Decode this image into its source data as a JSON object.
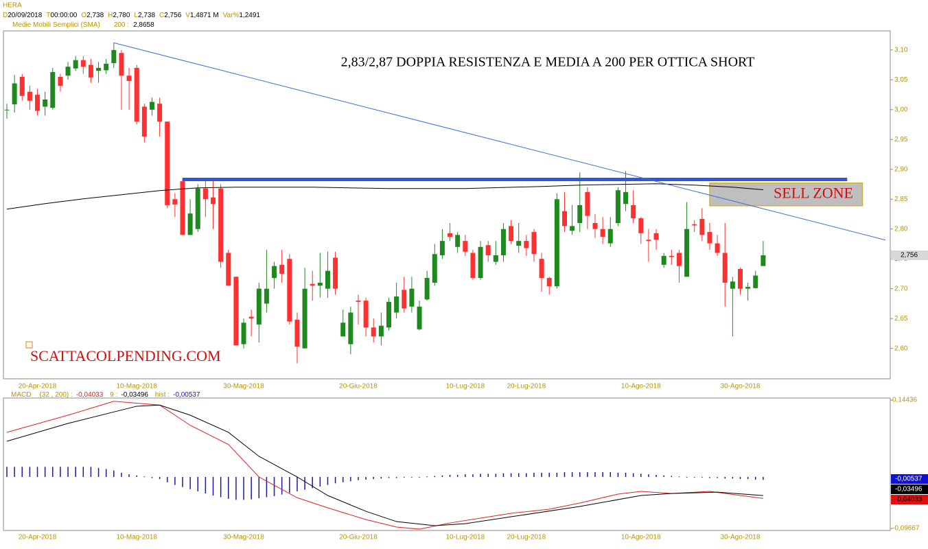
{
  "chart_data": [
    {
      "type": "candlestick",
      "header": {
        "symbol": "HERA",
        "fields": [
          {
            "key": "D",
            "value": "20/09/2018"
          },
          {
            "key": "T",
            "value": "00:00:00"
          },
          {
            "key": "O",
            "value": "2,738"
          },
          {
            "key": "H",
            "value": "2,780"
          },
          {
            "key": "L",
            "value": "2,738"
          },
          {
            "key": "C",
            "value": "2,756"
          },
          {
            "key": "V",
            "value": "1,4871 M"
          },
          {
            "key": "Var%",
            "value": "1,2491"
          }
        ]
      },
      "title": "2,83/2,87 DOPPIA RESISTENZA E MEDIA A 200 PER OTTICA SHORT",
      "annotations": [
        "SELL ZONE",
        "SCATTACOLPENDING.COM"
      ],
      "last_label": "2,756",
      "categories": [
        null,
        null,
        null,
        null,
        "20-Apr-2018",
        null,
        null,
        null,
        null,
        null,
        null,
        null,
        null,
        null,
        null,
        null,
        null,
        "10-Mag-2018",
        null,
        null,
        null,
        null,
        null,
        null,
        null,
        null,
        null,
        null,
        null,
        null,
        null,
        "30-Mag-2018",
        null,
        null,
        null,
        null,
        null,
        null,
        null,
        null,
        null,
        null,
        null,
        null,
        null,
        null,
        "20-Giu-2018",
        null,
        null,
        null,
        null,
        null,
        null,
        null,
        null,
        null,
        null,
        null,
        null,
        null,
        "10-Lug-2018",
        null,
        null,
        null,
        null,
        null,
        null,
        null,
        "20-Lug-2018",
        null,
        null,
        null,
        null,
        null,
        null,
        null,
        null,
        null,
        null,
        null,
        null,
        null,
        null,
        "10-Ago-2018",
        null,
        null,
        null,
        null,
        null,
        null,
        null,
        null,
        null,
        null,
        null,
        null,
        "30-Ago-2018",
        null,
        null,
        null
      ],
      "open": [
        3.0,
        3.009,
        3.055,
        3.03,
        3.025,
        3.005,
        3.003,
        3.055,
        3.057,
        3.069,
        3.083,
        3.075,
        3.065,
        3.066,
        3.078,
        3.095,
        3.057,
        3.07,
        3.005,
        3.0,
        3.01,
        2.98,
        2.85,
        2.88,
        2.79,
        2.8,
        2.868,
        2.853,
        2.868,
        2.76,
        2.72,
        2.607,
        2.653,
        2.64,
        2.675,
        2.718,
        2.74,
        2.75,
        2.648,
        2.6,
        2.708,
        2.705,
        2.7,
        2.752,
        2.62,
        2.607,
        2.68,
        2.68,
        2.635,
        2.62,
        2.635,
        2.66,
        2.698,
        2.67,
        2.632,
        2.682,
        2.71,
        2.756,
        2.793,
        2.77,
        2.78,
        2.76,
        2.718,
        2.773,
        2.745,
        2.756,
        2.805,
        2.772,
        2.78,
        2.795,
        2.75,
        2.718,
        2.704,
        2.83,
        2.797,
        2.81,
        2.862,
        2.81,
        2.8,
        2.776,
        2.81,
        2.842,
        2.84,
        2.818,
        2.782,
        2.793,
        2.74,
        2.755,
        2.76,
        2.72,
        2.808,
        2.817,
        2.795,
        2.776,
        2.76,
        2.7,
        2.733,
        2.7,
        2.701,
        2.738
      ],
      "high": [
        3.01,
        3.058,
        3.06,
        3.04,
        3.035,
        3.03,
        3.07,
        3.06,
        3.08,
        3.09,
        3.09,
        3.085,
        3.08,
        3.085,
        3.112,
        3.1,
        3.07,
        3.075,
        3.01,
        3.02,
        3.02,
        2.98,
        2.86,
        2.885,
        2.85,
        2.875,
        2.88,
        2.885,
        2.875,
        2.765,
        2.72,
        2.65,
        2.665,
        2.71,
        2.765,
        2.745,
        2.765,
        2.758,
        2.66,
        2.735,
        2.73,
        2.76,
        2.762,
        2.762,
        2.665,
        2.67,
        2.69,
        2.685,
        2.65,
        2.66,
        2.685,
        2.71,
        2.72,
        2.72,
        2.68,
        2.73,
        2.775,
        2.8,
        2.81,
        2.795,
        2.79,
        2.765,
        2.78,
        2.78,
        2.78,
        2.81,
        2.815,
        2.81,
        2.79,
        2.8,
        2.76,
        2.72,
        2.86,
        2.862,
        2.84,
        2.895,
        2.87,
        2.825,
        2.82,
        2.82,
        2.87,
        2.897,
        2.865,
        2.82,
        2.8,
        2.8,
        2.76,
        2.765,
        2.765,
        2.845,
        2.815,
        2.835,
        2.81,
        2.79,
        2.81,
        2.72,
        2.735,
        2.71,
        2.73,
        2.78
      ],
      "low": [
        2.985,
        2.995,
        3.015,
        3.0,
        2.99,
        2.99,
        3.0,
        3.03,
        3.05,
        3.065,
        3.06,
        3.045,
        3.045,
        3.06,
        3.07,
        3.0,
        3.0,
        2.975,
        2.945,
        2.99,
        2.955,
        2.835,
        2.82,
        2.79,
        2.79,
        2.795,
        2.82,
        2.8,
        2.735,
        2.705,
        2.605,
        2.6,
        2.62,
        2.61,
        2.66,
        2.7,
        2.71,
        2.64,
        2.575,
        2.6,
        2.68,
        2.685,
        2.685,
        2.69,
        2.62,
        2.59,
        2.64,
        2.62,
        2.61,
        2.605,
        2.63,
        2.65,
        2.66,
        2.66,
        2.63,
        2.68,
        2.705,
        2.75,
        2.78,
        2.76,
        2.755,
        2.715,
        2.715,
        2.745,
        2.74,
        2.745,
        2.775,
        2.76,
        2.755,
        2.745,
        2.695,
        2.69,
        2.7,
        2.795,
        2.79,
        2.795,
        2.8,
        2.785,
        2.775,
        2.77,
        2.805,
        2.83,
        2.81,
        2.775,
        2.745,
        2.765,
        2.735,
        2.74,
        2.71,
        2.72,
        2.795,
        2.78,
        2.765,
        2.755,
        2.67,
        2.62,
        2.69,
        2.68,
        2.7,
        2.738
      ],
      "close": [
        3.0,
        3.044,
        3.023,
        3.015,
        2.998,
        3.017,
        3.063,
        3.04,
        3.072,
        3.083,
        3.072,
        3.054,
        3.07,
        3.077,
        3.1,
        3.057,
        3.048,
        2.98,
        2.955,
        3.013,
        2.98,
        2.84,
        2.841,
        2.79,
        2.826,
        2.868,
        2.85,
        2.842,
        2.745,
        2.705,
        2.605,
        2.643,
        2.65,
        2.7,
        2.7,
        2.738,
        2.725,
        2.645,
        2.603,
        2.7,
        2.705,
        2.71,
        2.73,
        2.7,
        2.643,
        2.66,
        2.678,
        2.635,
        2.62,
        2.638,
        2.678,
        2.687,
        2.667,
        2.7,
        2.67,
        2.718,
        2.758,
        2.78,
        2.787,
        2.79,
        2.762,
        2.718,
        2.77,
        2.756,
        2.756,
        2.8,
        2.78,
        2.78,
        2.768,
        2.758,
        2.718,
        2.704,
        2.85,
        2.805,
        2.805,
        2.84,
        2.822,
        2.8,
        2.787,
        2.8,
        2.865,
        2.862,
        2.818,
        2.793,
        2.78,
        2.782,
        2.755,
        2.753,
        2.738,
        2.8,
        2.806,
        2.79,
        2.776,
        2.76,
        2.71,
        2.712,
        2.7,
        2.703,
        2.722,
        2.756
      ],
      "up_color": "#1e8a1e",
      "down_color": "#ff3030",
      "sma": {
        "name": "Medie Mobili Semplici (SMA)",
        "period_label": "200 :",
        "last_label": "2,8658",
        "color": "#000000",
        "x": [
          0,
          5,
          10,
          15,
          20,
          25,
          30,
          40,
          50,
          60,
          70,
          75,
          80,
          85,
          90,
          95,
          99
        ],
        "values": [
          2.8333,
          2.8425,
          2.8506,
          2.8575,
          2.8644,
          2.869,
          2.8701,
          2.8701,
          2.8678,
          2.8678,
          2.8713,
          2.8736,
          2.8747,
          2.8759,
          2.8736,
          2.8701,
          2.8658
        ]
      },
      "trendline": {
        "x": [
          14,
          115
        ],
        "values": [
          3.112,
          2.7816
        ],
        "color": "#3a6fd8"
      },
      "resistance": {
        "x": [
          23,
          110
        ],
        "values": [
          2.883,
          2.883
        ],
        "color": "#3355dd"
      },
      "sell_zone": {
        "x": [
          92,
          112
        ],
        "values": [
          2.877,
          2.839
        ]
      },
      "ylim": [
        2.549,
        3.132
      ],
      "yticks": [
        {
          "value": 2.6,
          "label": "2,60"
        },
        {
          "value": 2.65,
          "label": "2,65"
        },
        {
          "value": 2.7,
          "label": "2,70"
        },
        {
          "value": 2.75,
          "label": "2,75"
        },
        {
          "value": 2.8,
          "label": "2,80"
        },
        {
          "value": 2.85,
          "label": "2,85"
        },
        {
          "value": 2.9,
          "label": "2,90"
        },
        {
          "value": 2.95,
          "label": "2,95"
        },
        {
          "value": 3.0,
          "label": "3,00"
        },
        {
          "value": 3.05,
          "label": "3,05"
        },
        {
          "value": 3.1,
          "label": "3,10"
        }
      ]
    },
    {
      "type": "macd",
      "name": "MACD",
      "series": [
        {
          "name": "(32 , 200) :",
          "last_label": "-0,04033",
          "color": "#e02020",
          "x": [
            0,
            8,
            14,
            20,
            24,
            29,
            33,
            38,
            42,
            47,
            51,
            54,
            58,
            62,
            66,
            71,
            75,
            80,
            83,
            87,
            92,
            96,
            99
          ],
          "values": [
            0.0838,
            0.116,
            0.142,
            0.135,
            0.097,
            0.061,
            0.0,
            -0.039,
            -0.058,
            -0.08,
            -0.094,
            -0.098,
            -0.0864,
            -0.0773,
            -0.0683,
            -0.0606,
            -0.049,
            -0.0322,
            -0.0271,
            -0.031,
            -0.0271,
            -0.0348,
            -0.04033
          ]
        },
        {
          "name": "9 :",
          "last_label": "-0,03496",
          "color": "#000000",
          "x": [
            0,
            8,
            17,
            20,
            24,
            29,
            33,
            38,
            42,
            47,
            51,
            56,
            60,
            66,
            75,
            83,
            87,
            93,
            99
          ],
          "values": [
            0.067,
            0.1005,
            0.1328,
            0.135,
            0.116,
            0.0838,
            0.0387,
            0.0,
            -0.0348,
            -0.0645,
            -0.0838,
            -0.0915,
            -0.0877,
            -0.0748,
            -0.0554,
            -0.0348,
            -0.031,
            -0.0285,
            -0.03496
          ]
        }
      ],
      "hist": {
        "name": "hist :",
        "last_label": "-0,00537",
        "color": "#1a1aa0",
        "values": [
          0.019,
          0.019,
          0.019,
          0.019,
          0.019,
          0.019,
          0.019,
          0.019,
          0.019,
          0.019,
          0.019,
          0.019,
          0.017,
          0.015,
          0.012,
          0.008,
          0.005,
          0.003,
          0.001,
          -0.002,
          -0.004,
          -0.01,
          -0.015,
          -0.019,
          -0.023,
          -0.027,
          -0.031,
          -0.035,
          -0.038,
          -0.041,
          -0.043,
          -0.043,
          -0.042,
          -0.04,
          -0.038,
          -0.036,
          -0.033,
          -0.03,
          -0.027,
          -0.024,
          -0.021,
          -0.018,
          -0.015,
          -0.012,
          -0.01,
          -0.008,
          -0.006,
          -0.005,
          -0.004,
          -0.003,
          -0.002,
          -0.002,
          -0.001,
          -0.001,
          0.0,
          0.001,
          0.002,
          0.003,
          0.004,
          0.004,
          0.005,
          0.005,
          0.006,
          0.006,
          0.006,
          0.007,
          0.007,
          0.007,
          0.007,
          0.008,
          0.008,
          0.008,
          0.008,
          0.009,
          0.009,
          0.009,
          0.009,
          0.009,
          0.009,
          0.009,
          0.008,
          0.008,
          0.007,
          0.006,
          0.005,
          0.004,
          0.003,
          0.002,
          0.001,
          0.0,
          -0.001,
          -0.001,
          -0.002,
          -0.002,
          -0.003,
          -0.003,
          -0.004,
          -0.004,
          -0.005,
          -0.00537
        ]
      },
      "ylim": [
        -0.1005,
        0.1482
      ],
      "yticks": [
        {
          "value": 0.14436,
          "label": "0,14436"
        },
        {
          "value": -0.09667,
          "label": "-0,09667"
        }
      ]
    }
  ]
}
